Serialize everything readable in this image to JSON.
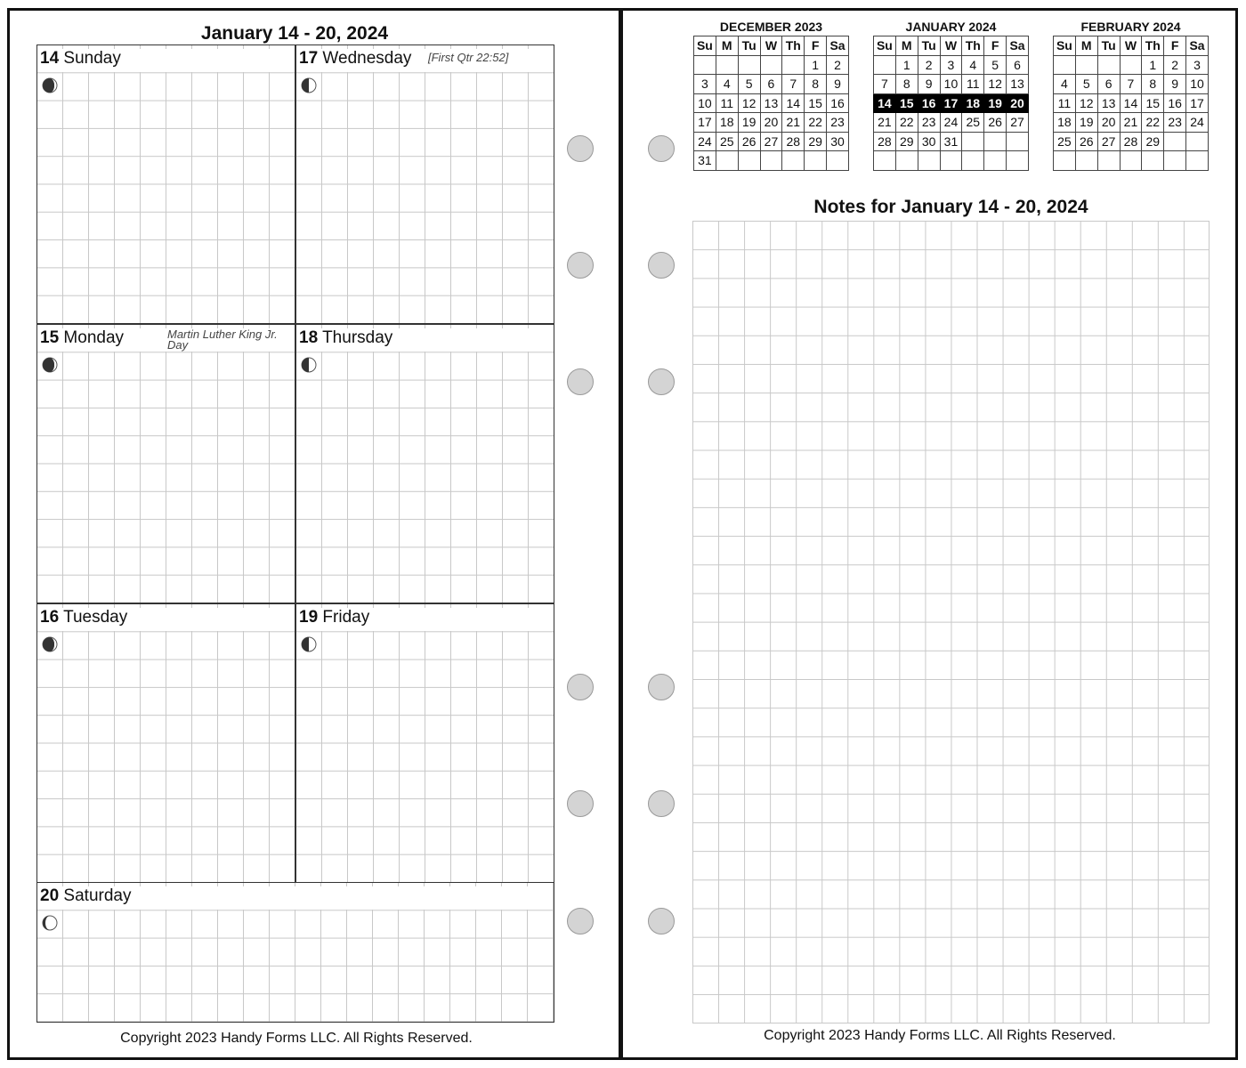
{
  "left_page": {
    "title": "January 14 - 20, 2024",
    "days": [
      {
        "num": "14",
        "name": "Sunday",
        "note": "",
        "moon": "waxing-crescent-icon"
      },
      {
        "num": "17",
        "name": "Wednesday",
        "note": "[First Qtr 22:52]",
        "moon": "first-quarter-icon"
      },
      {
        "num": "15",
        "name": "Monday",
        "note": "Martin Luther King Jr. Day",
        "moon": "waxing-crescent-icon"
      },
      {
        "num": "18",
        "name": "Thursday",
        "note": "",
        "moon": "first-quarter-icon"
      },
      {
        "num": "16",
        "name": "Tuesday",
        "note": "",
        "moon": "waxing-crescent-icon"
      },
      {
        "num": "19",
        "name": "Friday",
        "note": "",
        "moon": "first-quarter-icon"
      },
      {
        "num": "20",
        "name": "Saturday",
        "note": "",
        "moon": "waxing-gibbous-icon"
      }
    ],
    "footer": "Copyright 2023 Handy Forms LLC. All Rights Reserved."
  },
  "right_page": {
    "mini_calendars": [
      {
        "title": "DECEMBER 2023",
        "start": 5,
        "days": 31,
        "highlight": []
      },
      {
        "title": "JANUARY 2024",
        "start": 1,
        "days": 31,
        "highlight": [
          14,
          15,
          16,
          17,
          18,
          19,
          20
        ]
      },
      {
        "title": "FEBRUARY 2024",
        "start": 4,
        "days": 29,
        "highlight": []
      }
    ],
    "weekday_headers": [
      "Su",
      "M",
      "Tu",
      "W",
      "Th",
      "F",
      "Sa"
    ],
    "notes_title": "Notes for January 14 - 20, 2024",
    "footer": "Copyright 2023 Handy Forms LLC. All Rights Reserved."
  },
  "colors": {
    "grid": "#c8c8c8",
    "highlight": "#000000",
    "hole": "#d4d4d4"
  }
}
